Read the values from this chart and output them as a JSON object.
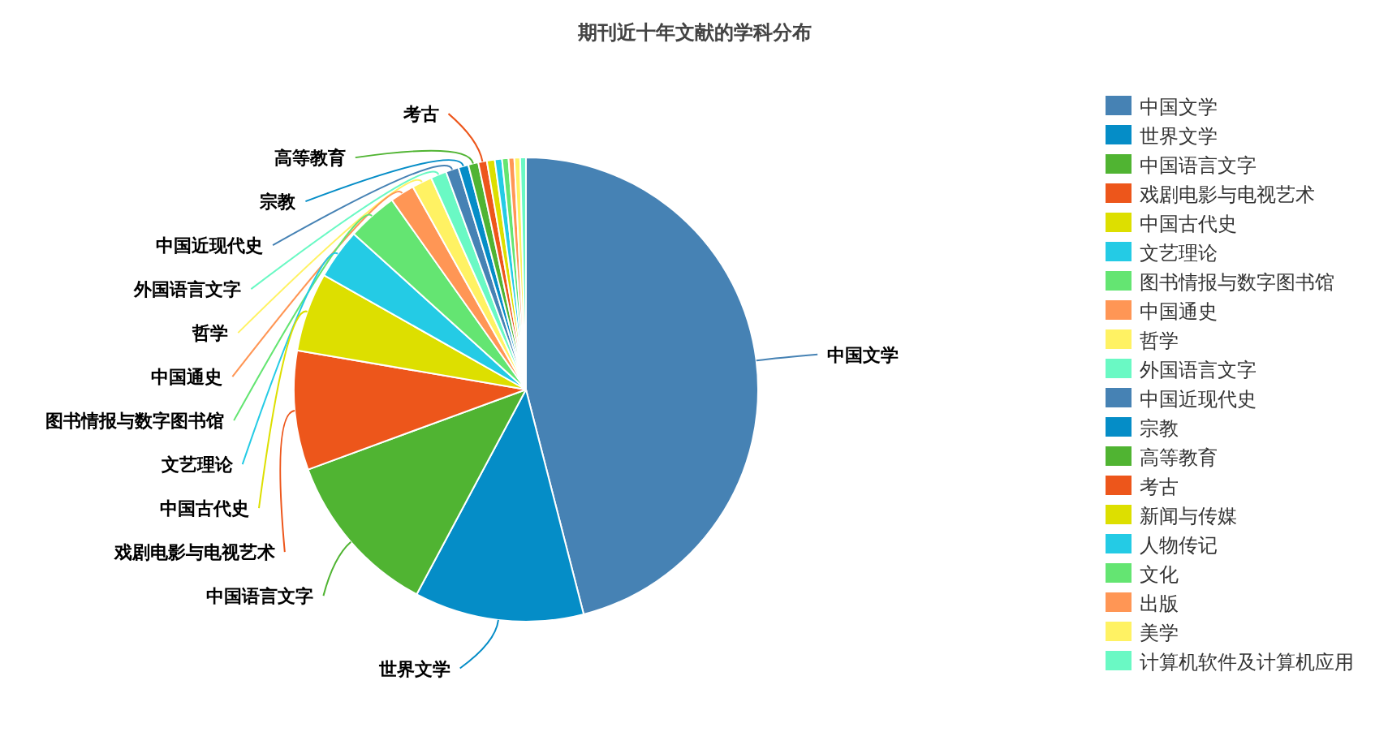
{
  "chart_data": {
    "type": "pie",
    "title": "期刊近十年文献的学科分布",
    "categories": [
      "中国文学",
      "世界文学",
      "中国语言文字",
      "戏剧电影与电视艺术",
      "中国古代史",
      "文艺理论",
      "图书情报与数字图书馆",
      "中国通史",
      "哲学",
      "外国语言文字",
      "中国近现代史",
      "宗教",
      "高等教育",
      "考古",
      "新闻与传媒",
      "人物传记",
      "文化",
      "出版",
      "美学",
      "计算机软件及计算机应用"
    ],
    "values": [
      46.0,
      11.8,
      11.6,
      8.3,
      5.5,
      3.5,
      3.5,
      1.7,
      1.4,
      1.1,
      0.9,
      0.7,
      0.7,
      0.6,
      0.55,
      0.5,
      0.45,
      0.4,
      0.4,
      0.4
    ],
    "colors": [
      "#4682b4",
      "#058dc7",
      "#50b432",
      "#ed561b",
      "#dddf00",
      "#24cbe5",
      "#64e572",
      "#ff9655",
      "#fff263",
      "#6af9c4",
      "#4682b4",
      "#058dc7",
      "#50b432",
      "#ed561b",
      "#dddf00",
      "#24cbe5",
      "#64e572",
      "#ff9655",
      "#fff263",
      "#6af9c4"
    ],
    "legend": "right"
  }
}
